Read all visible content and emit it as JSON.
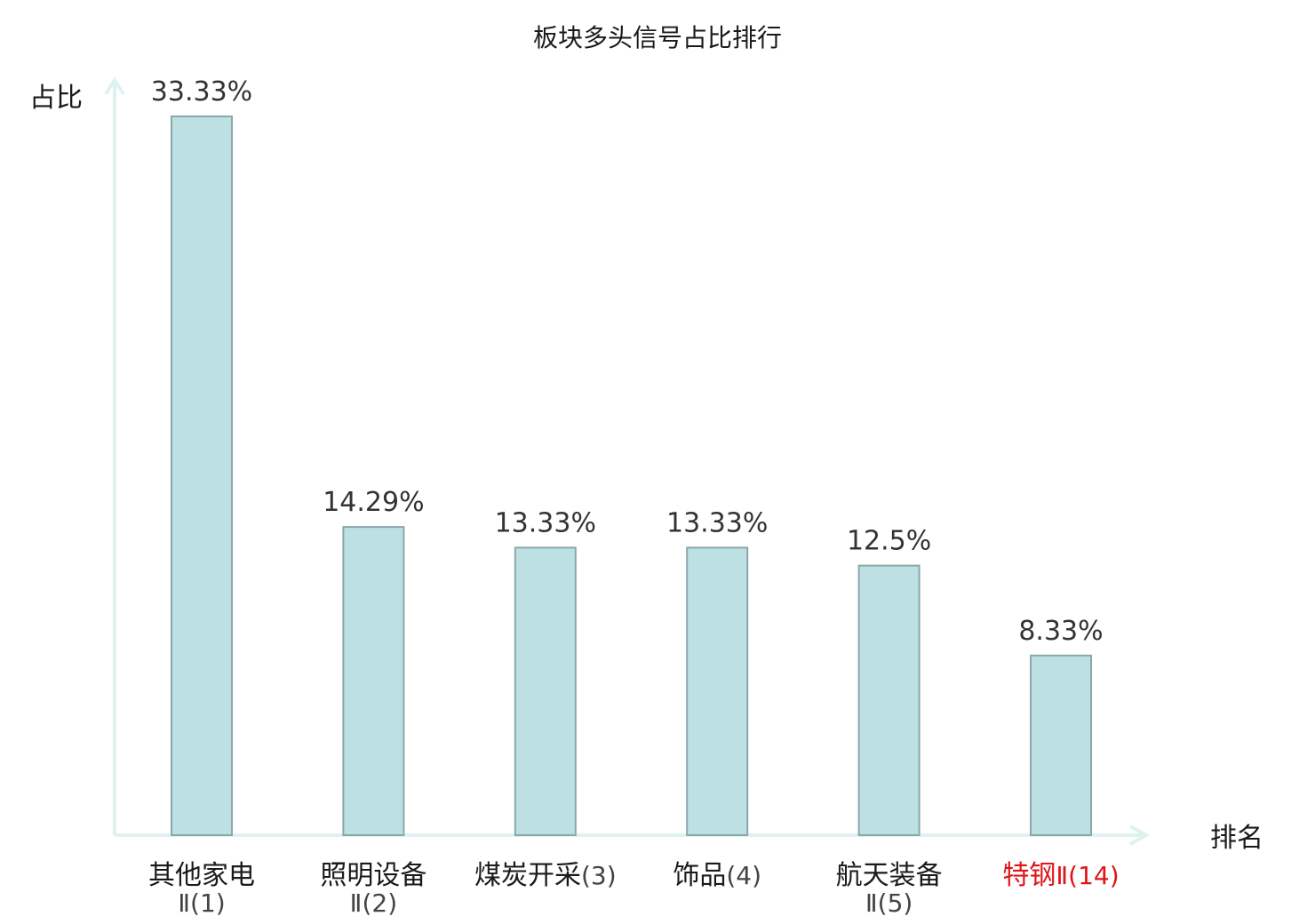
{
  "chart_data": {
    "type": "bar",
    "title": "板块多头信号占比排行",
    "ylabel": "占比",
    "xlabel": "排名",
    "ylim": [
      0,
      35
    ],
    "grid": false,
    "categories": [
      {
        "name": "其他家电",
        "sub": "Ⅱ(1)",
        "highlight": false
      },
      {
        "name": "照明设备",
        "sub": "Ⅱ(2)",
        "highlight": false
      },
      {
        "name": "煤炭开采",
        "sub": "(3)",
        "highlight": false
      },
      {
        "name": "饰品",
        "sub": "(4)",
        "highlight": false
      },
      {
        "name": "航天装备",
        "sub": "Ⅱ(5)",
        "highlight": false
      },
      {
        "name": "特钢",
        "sub": "Ⅱ(14)",
        "highlight": true
      }
    ],
    "values": [
      33.33,
      14.29,
      13.33,
      13.33,
      12.5,
      8.33
    ],
    "value_labels": [
      "33.33%",
      "14.29%",
      "13.33%",
      "13.33%",
      "12.5%",
      "8.33%"
    ]
  },
  "colors": {
    "bar_fill": "#bde0e3",
    "bar_stroke": "#8aa8ac",
    "axis": "#dff2ef",
    "highlight": "#e0141a",
    "text": "#1a1a1a"
  }
}
